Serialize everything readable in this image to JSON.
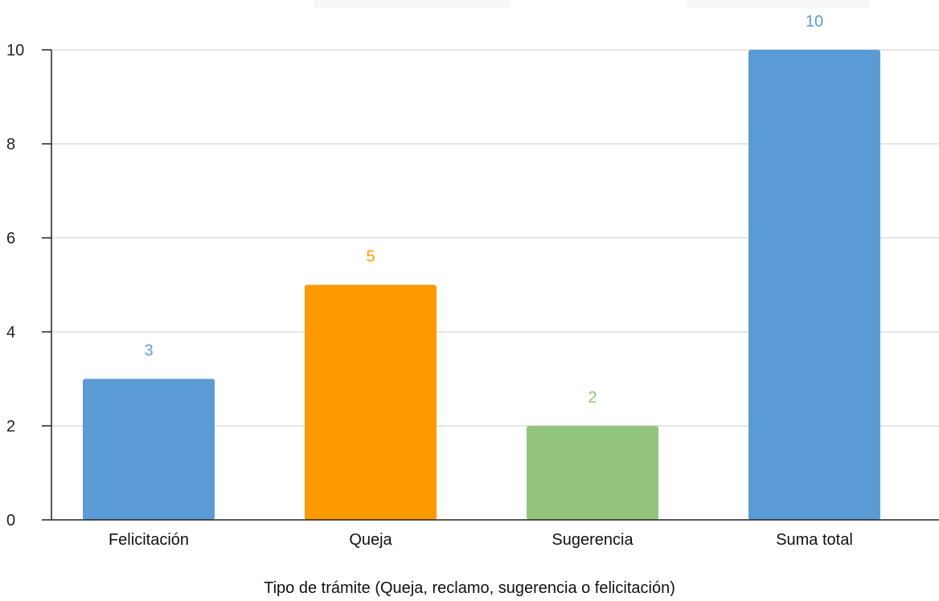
{
  "chart_data": {
    "type": "bar",
    "title": "",
    "xlabel": "Tipo de trámite (Queja, reclamo, sugerencia o felicitación)",
    "ylabel": "",
    "categories": [
      "Felicitación",
      "Queja",
      "Sugerencia",
      "Suma total"
    ],
    "values": [
      3,
      5,
      2,
      10
    ],
    "bar_colors": [
      "#5b9bd5",
      "#ff9900",
      "#93c47d",
      "#5b9bd5"
    ],
    "value_labels": [
      "3",
      "5",
      "2",
      "10"
    ],
    "ylim": [
      0,
      10
    ],
    "yticks": [
      "0",
      "2",
      "4",
      "6",
      "8",
      "10"
    ],
    "grid": true,
    "legend": "none"
  }
}
